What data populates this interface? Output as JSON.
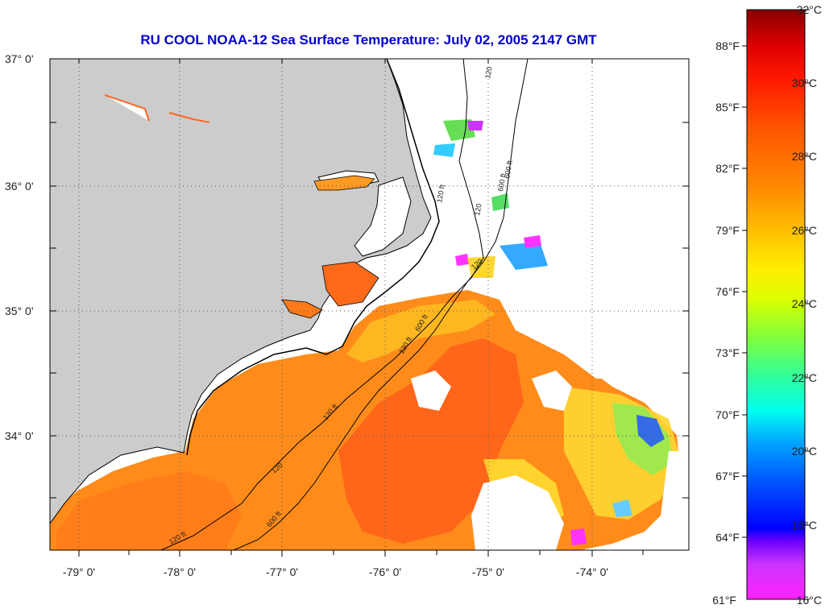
{
  "title": "RU COOL  NOAA-12  Sea Surface Temperature:  July 02, 2005 2147 GMT",
  "lat_labels": [
    "37° 0'",
    "36° 0'",
    "35° 0'",
    "34° 0'"
  ],
  "lon_labels": [
    "-79° 0'",
    "-78° 0'",
    "-77° 0'",
    "-76° 0'",
    "-75° 0'",
    "-74° 0'"
  ],
  "contour_labels": [
    "120",
    "600 ft",
    "120 ft",
    "120",
    "600 ft",
    "120 ft",
    "600 ft",
    "120 ft",
    "120",
    "120",
    "600 ft",
    "120 ft"
  ],
  "colorbar": {
    "fahrenheit": [
      "88°F",
      "85°F",
      "82°F",
      "79°F",
      "76°F",
      "73°F",
      "70°F",
      "67°F",
      "64°F",
      "61°F"
    ],
    "celsius": [
      "32°C",
      "30°C",
      "28°C",
      "26°C",
      "24°C",
      "22°C",
      "20°C",
      "18°C",
      "16°C"
    ],
    "colors": [
      "#ff22ff",
      "#cc33ff",
      "#8800ff",
      "#0000ff",
      "#0066ff",
      "#00ccff",
      "#00ffcc",
      "#44ff66",
      "#aaff22",
      "#ffff00",
      "#ffcc00",
      "#ff9900",
      "#ff6600",
      "#ff2200",
      "#dd0000",
      "#880000"
    ]
  },
  "colors": {
    "land": "#cccccc",
    "ocean_nodata": "#ffffff",
    "sst_warm": "#ff8c1a",
    "sst_hot": "#ff5a1a",
    "sst_cool": "#ffcc22",
    "title": "#0000cc"
  }
}
